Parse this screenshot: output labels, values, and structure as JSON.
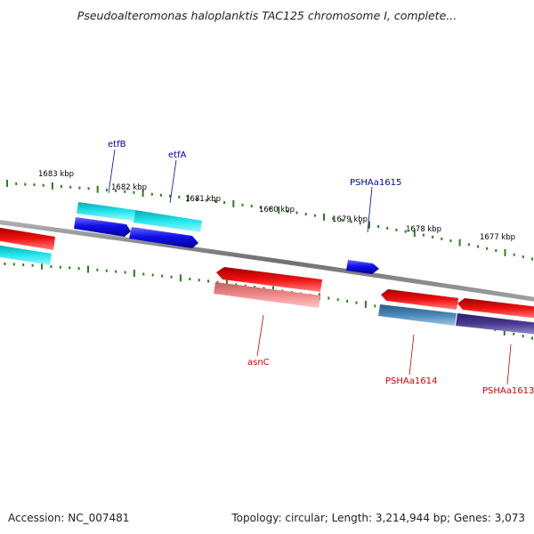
{
  "title": "Pseudoalteromonas haloplanktis TAC125 chromosome I, complete...",
  "footer": {
    "accession": "Accession: NC_007481",
    "topology": "Topology: circular; Length: 3,214,944 bp; Genes: 3,073"
  },
  "colors": {
    "backbone": "#808080",
    "tick": "#2e7d1e",
    "plus_label": "#0000aa",
    "minus_label": "#cc0000",
    "cds_blue": "#0a0ae0",
    "cds_cyan": "#19e0e8",
    "cds_red": "#e01010",
    "cds_pink": "#f08080",
    "cds_steel": "#4a84b0",
    "cds_purple": "#4a3a8a"
  },
  "scale_labels": [
    "1683 kbp",
    "1682 kbp",
    "1681 kbp",
    "1680 kbp",
    "1679 kbp",
    "1678 kbp",
    "1677 kbp"
  ],
  "gene_labels": {
    "etfB": "etfB",
    "etfA": "etfA",
    "PSHAa1615": "PSHAa1615",
    "asnC": "asnC",
    "PSHAa1614": "PSHAa1614",
    "PSHAa1613": "PSHAa1613"
  }
}
